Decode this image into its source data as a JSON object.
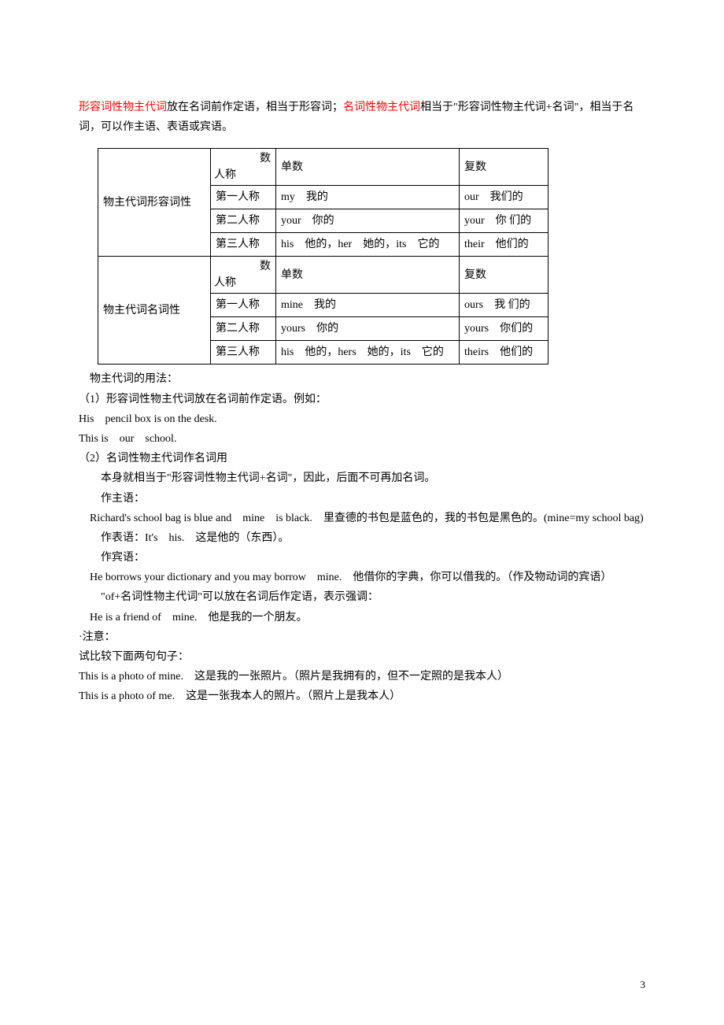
{
  "intro": {
    "part1_red": "形容词性物主代词",
    "part1_rest": "放在名词前作定语，相当于形容词；",
    "part2_red": "名词性物主代词",
    "part2_rest": "相当于\"形容词性物主代词+名词\"，相当于名词，可以作主语、表语或宾语。"
  },
  "table": {
    "header_num": "数",
    "header_person": "人称",
    "singular": "单数",
    "plural": "复数",
    "type_adj": "物主代词形容词性",
    "type_noun": "物主代词名词性",
    "p1": "第一人称",
    "p2": "第二人称",
    "p3": "第三人称",
    "adj": {
      "p1_sg": "my　我的",
      "p1_pl": "our　我们的",
      "p2_sg": "your　你的",
      "p2_pl": "your　你 们的",
      "p3_sg": "his　他的，her　她的，its　它的",
      "p3_pl": "their　他们的"
    },
    "noun": {
      "p1_sg": "mine　我的",
      "p1_pl": "ours　我 们的",
      "p2_sg": "yours　你的",
      "p2_pl": "yours　你们的",
      "p3_sg": "his　他的，hers　她的，its　它的",
      "p3_pl": "theirs　他们的"
    }
  },
  "body": {
    "l1": "物主代词的用法：",
    "l2": "（1）形容词性物主代词放在名词前作定语。例如：",
    "l3": "His　pencil box is on the desk.",
    "l4": "This is　our　school.",
    "l5": "（2）名词性物主代词作名词用",
    "l6": "本身就相当于\"形容词性物主代词+名词\"，因此，后面不可再加名词。",
    "l7": "作主语：",
    "l8": "Richard's school bag is blue and　mine　is black.　里查德的书包是蓝色的，我的书包是黑色的。(mine=my school bag)",
    "l9": "作表语：It's　his.　这是他的（东西）。",
    "l10": "作宾语：",
    "l11": "He borrows your dictionary and you may borrow　mine.　他借你的字典，你可以借我的。（作及物动词的宾语）",
    "l12": "\"of+名词性物主代词\"可以放在名词后作定语，表示强调：",
    "l13": "He is a friend of　mine.　他是我的一个朋友。",
    "l14": "·注意：",
    "l15": "试比较下面两句句子：",
    "l16": "This is a photo of mine.　这是我的一张照片。（照片是我拥有的，但不一定照的是我本人）",
    "l17": "This is a photo of me.　这是一张我本人的照片。（照片上是我本人）"
  },
  "page_number": "3"
}
